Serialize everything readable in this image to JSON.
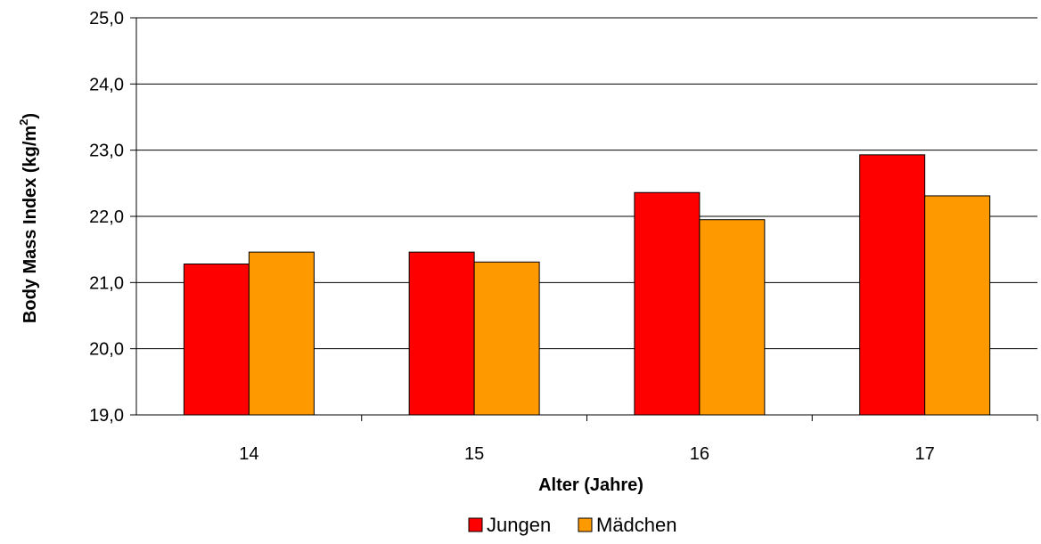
{
  "chart_data": {
    "type": "bar",
    "categories": [
      "14",
      "15",
      "16",
      "17"
    ],
    "series": [
      {
        "name": "Jungen",
        "color": "#ff0000",
        "values": [
          21.28,
          21.46,
          22.36,
          22.93
        ]
      },
      {
        "name": "Mädchen",
        "color": "#ff9900",
        "values": [
          21.46,
          21.31,
          21.95,
          22.31
        ]
      }
    ],
    "xlabel": "Alter (Jahre)",
    "ylabel": {
      "main": "Body Mass Index (kg/m",
      "superscript": "2",
      "suffix": ")"
    },
    "ylim": [
      19,
      25
    ],
    "yticks": [
      "19,0",
      "20,0",
      "21,0",
      "22,0",
      "23,0",
      "24,0",
      "25,0"
    ],
    "grid": true,
    "legend_position": "bottom"
  }
}
